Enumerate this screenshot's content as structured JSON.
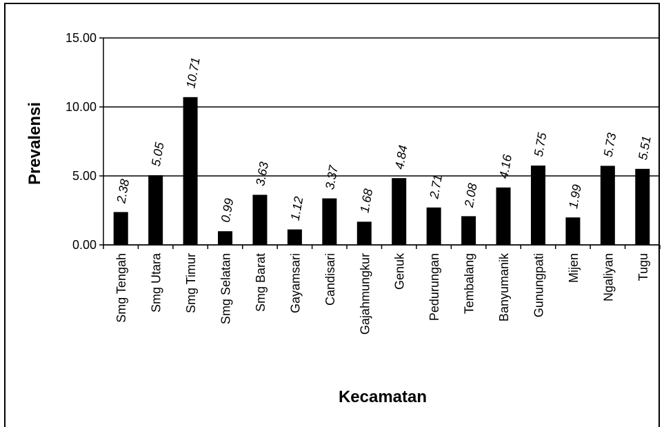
{
  "chart_data": {
    "type": "bar",
    "categories": [
      "Smg Tengah",
      "Smg Utara",
      "Smg Timur",
      "Smg Selatan",
      "Smg Barat",
      "Gayamsari",
      "Candisari",
      "Gajahmungkur",
      "Genuk",
      "Pedurungan",
      "Tembalang",
      "Banyumanik",
      "Gunungpati",
      "Mijen",
      "Ngaliyan",
      "Tugu"
    ],
    "values": [
      2.38,
      5.05,
      10.71,
      0.99,
      3.63,
      1.12,
      3.37,
      1.68,
      4.84,
      2.71,
      2.08,
      4.16,
      5.75,
      1.99,
      5.73,
      5.51
    ],
    "data_labels": [
      "2.38",
      "5.05",
      "10.71",
      "0.99",
      "3.63",
      "1.12",
      "3.37",
      "1.68",
      "4.84",
      "2.71",
      "2.08",
      "4.16",
      "5.75",
      "1.99",
      "5.73",
      "5.51"
    ],
    "title": "",
    "xlabel": "Kecamatan",
    "ylabel": "Prevalensi",
    "ylim": [
      0,
      15
    ],
    "yticks": [
      "0.00",
      "5.00",
      "10.00",
      "15.00"
    ],
    "grid": true,
    "bar_color": "#000000"
  }
}
